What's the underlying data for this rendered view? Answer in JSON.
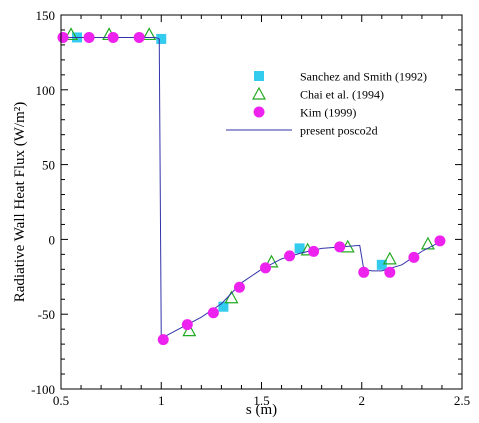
{
  "chart_data": {
    "type": "scatter",
    "title": "",
    "xlabel": "s (m)",
    "ylabel": "Radiative Wall Heat Flux (W/m²)",
    "xlim": [
      0.5,
      2.5
    ],
    "ylim": [
      -100,
      150
    ],
    "x_ticks": [
      0.5,
      1,
      1.5,
      2,
      2.5
    ],
    "x_tick_labels": [
      "0.5",
      "1",
      "1.5",
      "2",
      "2.5"
    ],
    "y_ticks": [
      -100,
      -50,
      0,
      50,
      100,
      150
    ],
    "y_tick_labels": [
      "-100",
      "-50",
      "0",
      "50",
      "100",
      "150"
    ],
    "grid": false,
    "legend_position": "top-right",
    "series": [
      {
        "name": "Sanchez and Smith (1992)",
        "marker": "square",
        "color": "#33ccee",
        "x": [
          0.58,
          1.0,
          1.31,
          1.69,
          2.1
        ],
        "y": [
          135,
          134,
          -45,
          -6,
          -17
        ]
      },
      {
        "name": "Chai et al. (1994)",
        "marker": "triangle",
        "color": "#22aa22",
        "x": [
          0.55,
          0.74,
          0.94,
          1.14,
          1.35,
          1.55,
          1.73,
          1.93,
          2.14,
          2.33
        ],
        "y": [
          137,
          137,
          137,
          -61,
          -39,
          -15,
          -7,
          -5,
          -13,
          -3
        ]
      },
      {
        "name": "Kim (1999)",
        "marker": "circle",
        "color": "#ee22ee",
        "x": [
          0.51,
          0.64,
          0.76,
          0.89,
          1.01,
          1.13,
          1.26,
          1.39,
          1.52,
          1.64,
          1.76,
          1.89,
          2.01,
          2.14,
          2.26,
          2.39
        ],
        "y": [
          135,
          135,
          135,
          135,
          -67,
          -57,
          -49,
          -32,
          -19,
          -11,
          -8,
          -5,
          -22,
          -22,
          -12,
          -1
        ]
      },
      {
        "name": "present posco2d",
        "marker": "line",
        "color": "#3333aa",
        "x": [
          0.5,
          0.7,
          0.9,
          0.97,
          0.99,
          1.0,
          1.03,
          1.1,
          1.2,
          1.3,
          1.4,
          1.5,
          1.6,
          1.7,
          1.8,
          1.9,
          1.99,
          2.01,
          2.05,
          2.1,
          2.2,
          2.3,
          2.4
        ],
        "y": [
          135,
          135,
          135,
          135,
          134,
          -66,
          -64,
          -59,
          -52,
          -43,
          -29,
          -20,
          -13,
          -9,
          -6,
          -5,
          -4,
          -20,
          -21,
          -21,
          -17,
          -8,
          -1
        ]
      }
    ]
  }
}
